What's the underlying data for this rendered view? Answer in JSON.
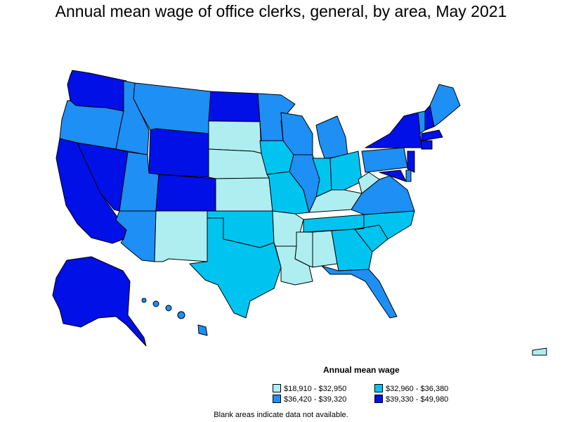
{
  "title": "Annual mean wage of office clerks, general, by area, May 2021",
  "legend": {
    "title": "Annual mean wage",
    "items": [
      {
        "label": "$18,910 - $32,950",
        "color": "#aeeef0"
      },
      {
        "label": "$32,960 - $36,380",
        "color": "#00c4f0"
      },
      {
        "label": "$36,420 - $39,320",
        "color": "#1e8ff5"
      },
      {
        "label": "$39,330 - $49,980",
        "color": "#0010e6"
      }
    ]
  },
  "footnote": "Blank areas indicate data not available.",
  "states": [
    {
      "name": "WA",
      "wage_class": 4
    },
    {
      "name": "OR",
      "wage_class": 3
    },
    {
      "name": "CA",
      "wage_class": 4
    },
    {
      "name": "NV",
      "wage_class": 4
    },
    {
      "name": "ID",
      "wage_class": 3
    },
    {
      "name": "MT",
      "wage_class": 3
    },
    {
      "name": "WY",
      "wage_class": 4
    },
    {
      "name": "UT",
      "wage_class": 3
    },
    {
      "name": "AZ",
      "wage_class": 3
    },
    {
      "name": "CO",
      "wage_class": 4
    },
    {
      "name": "NM",
      "wage_class": 1
    },
    {
      "name": "ND",
      "wage_class": 4
    },
    {
      "name": "SD",
      "wage_class": 1
    },
    {
      "name": "NE",
      "wage_class": 1
    },
    {
      "name": "KS",
      "wage_class": 1
    },
    {
      "name": "OK",
      "wage_class": 2
    },
    {
      "name": "TX",
      "wage_class": 2
    },
    {
      "name": "MN",
      "wage_class": 3
    },
    {
      "name": "IA",
      "wage_class": 2
    },
    {
      "name": "MO",
      "wage_class": 2
    },
    {
      "name": "AR",
      "wage_class": 1
    },
    {
      "name": "LA",
      "wage_class": 1
    },
    {
      "name": "WI",
      "wage_class": 3
    },
    {
      "name": "IL",
      "wage_class": 3
    },
    {
      "name": "MI",
      "wage_class": 3
    },
    {
      "name": "IN",
      "wage_class": 2
    },
    {
      "name": "OH",
      "wage_class": 2
    },
    {
      "name": "KY",
      "wage_class": 1
    },
    {
      "name": "TN",
      "wage_class": 2
    },
    {
      "name": "MS",
      "wage_class": 1
    },
    {
      "name": "AL",
      "wage_class": 1
    },
    {
      "name": "GA",
      "wage_class": 2
    },
    {
      "name": "FL",
      "wage_class": 3
    },
    {
      "name": "SC",
      "wage_class": 2
    },
    {
      "name": "NC",
      "wage_class": 2
    },
    {
      "name": "VA",
      "wage_class": 3
    },
    {
      "name": "WV",
      "wage_class": 1
    },
    {
      "name": "PA",
      "wage_class": 3
    },
    {
      "name": "NY",
      "wage_class": 4
    },
    {
      "name": "VT",
      "wage_class": 3
    },
    {
      "name": "NH",
      "wage_class": 4
    },
    {
      "name": "ME",
      "wage_class": 3
    },
    {
      "name": "MA",
      "wage_class": 4
    },
    {
      "name": "CT",
      "wage_class": 4
    },
    {
      "name": "NJ",
      "wage_class": 4
    },
    {
      "name": "MD",
      "wage_class": 4
    },
    {
      "name": "DE",
      "wage_class": 3
    },
    {
      "name": "AK",
      "wage_class": 4
    },
    {
      "name": "HI",
      "wage_class": 3
    },
    {
      "name": "PR",
      "wage_class": 1
    }
  ]
}
